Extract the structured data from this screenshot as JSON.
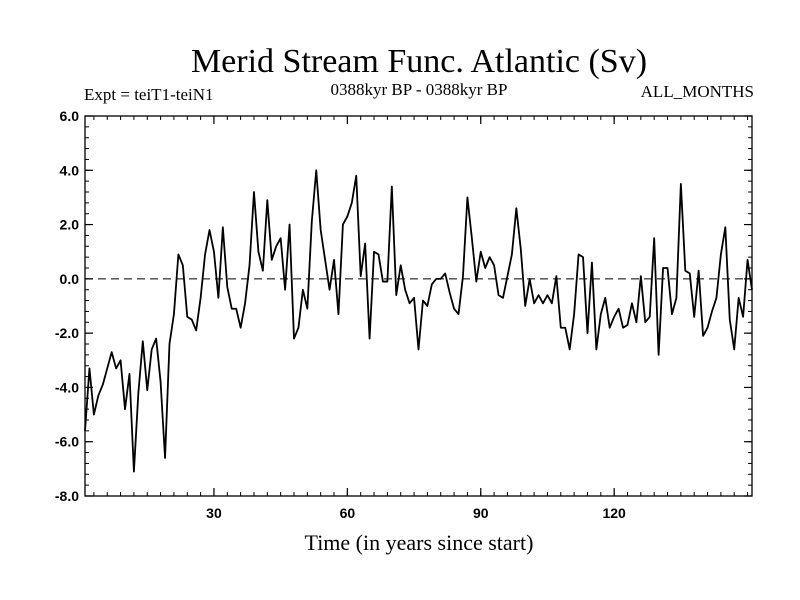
{
  "chart_data": {
    "type": "line",
    "title": "Merid Stream Func. Atlantic (Sv)",
    "subtitle_left": "Expt = teiT1-teiN1",
    "subtitle_center": "0388kyr BP - 0388kyr BP",
    "subtitle_right": "ALL_MONTHS",
    "xlabel": "Time (in years since start)",
    "ylabel": "",
    "xlim": [
      1,
      151
    ],
    "ylim": [
      -8,
      6
    ],
    "xticks": [
      30,
      60,
      90,
      120
    ],
    "xtick_labels": [
      "30",
      "60",
      "90",
      "120"
    ],
    "yticks": [
      -8,
      -6,
      -4,
      -2,
      0,
      2,
      4,
      6
    ],
    "ytick_labels": [
      "-8.0",
      "-6.0",
      "-4.0",
      "-2.0",
      "0.0",
      "2.0",
      "4.0",
      "6.0"
    ],
    "reference_line": {
      "y": 0,
      "style": "dashed"
    },
    "series": [
      {
        "name": "Merid Stream Func. Atlantic",
        "x": [
          1,
          2,
          3,
          4,
          5,
          6,
          7,
          8,
          9,
          10,
          11,
          12,
          13,
          14,
          15,
          16,
          17,
          18,
          19,
          20,
          21,
          22,
          23,
          24,
          25,
          26,
          27,
          28,
          29,
          30,
          31,
          32,
          33,
          34,
          35,
          36,
          37,
          38,
          39,
          40,
          41,
          42,
          43,
          44,
          45,
          46,
          47,
          48,
          49,
          50,
          51,
          52,
          53,
          54,
          55,
          56,
          57,
          58,
          59,
          60,
          61,
          62,
          63,
          64,
          65,
          66,
          67,
          68,
          69,
          70,
          71,
          72,
          73,
          74,
          75,
          76,
          77,
          78,
          79,
          80,
          81,
          82,
          83,
          84,
          85,
          86,
          87,
          88,
          89,
          90,
          91,
          92,
          93,
          94,
          95,
          96,
          97,
          98,
          99,
          100,
          101,
          102,
          103,
          104,
          105,
          106,
          107,
          108,
          109,
          110,
          111,
          112,
          113,
          114,
          115,
          116,
          117,
          118,
          119,
          120,
          121,
          122,
          123,
          124,
          125,
          126,
          127,
          128,
          129,
          130,
          131,
          132,
          133,
          134,
          135,
          136,
          137,
          138,
          139,
          140,
          141,
          142,
          143,
          144,
          145,
          146,
          147,
          148,
          149,
          150,
          151
        ],
        "values": [
          -5.6,
          -3.3,
          -5.0,
          -4.3,
          -3.9,
          -3.3,
          -2.7,
          -3.3,
          -3.0,
          -4.8,
          -3.5,
          -7.1,
          -4.2,
          -2.3,
          -4.1,
          -2.6,
          -2.2,
          -3.8,
          -6.6,
          -2.4,
          -1.3,
          0.9,
          0.5,
          -1.4,
          -1.5,
          -1.9,
          -0.7,
          0.9,
          1.8,
          1.0,
          -0.7,
          1.9,
          -0.3,
          -1.1,
          -1.1,
          -1.8,
          -0.9,
          0.5,
          3.2,
          1.0,
          0.3,
          2.9,
          0.7,
          1.2,
          1.5,
          -0.4,
          2.0,
          -2.2,
          -1.8,
          -0.4,
          -1.1,
          2.1,
          4.0,
          1.8,
          0.7,
          -0.4,
          0.7,
          -1.3,
          2.0,
          2.3,
          2.8,
          3.8,
          0.1,
          1.3,
          -2.2,
          1.0,
          0.9,
          -0.1,
          -0.1,
          3.4,
          -0.6,
          0.5,
          -0.4,
          -0.9,
          -0.7,
          -2.6,
          -0.8,
          -1.0,
          -0.2,
          0.0,
          0.0,
          0.2,
          -0.5,
          -1.1,
          -1.3,
          0.1,
          3.0,
          1.5,
          -0.1,
          1.0,
          0.4,
          0.8,
          0.5,
          -0.6,
          -0.7,
          0.1,
          0.9,
          2.6,
          1.1,
          -1.0,
          0.0,
          -0.9,
          -0.6,
          -0.9,
          -0.6,
          -0.9,
          0.1,
          -1.8,
          -1.8,
          -2.6,
          -1.3,
          0.9,
          0.8,
          -2.0,
          0.6,
          -2.6,
          -1.3,
          -0.7,
          -1.8,
          -1.4,
          -1.1,
          -1.8,
          -1.7,
          -0.9,
          -1.6,
          0.1,
          -1.6,
          -1.4,
          1.5,
          -2.8,
          0.4,
          0.4,
          -1.3,
          -0.7,
          3.5,
          0.3,
          0.2,
          -1.4,
          0.3,
          -2.1,
          -1.8,
          -1.2,
          -0.7,
          0.9,
          1.9,
          -1.5,
          -2.6,
          -0.7,
          -1.4,
          0.7,
          -0.4
        ]
      }
    ]
  }
}
